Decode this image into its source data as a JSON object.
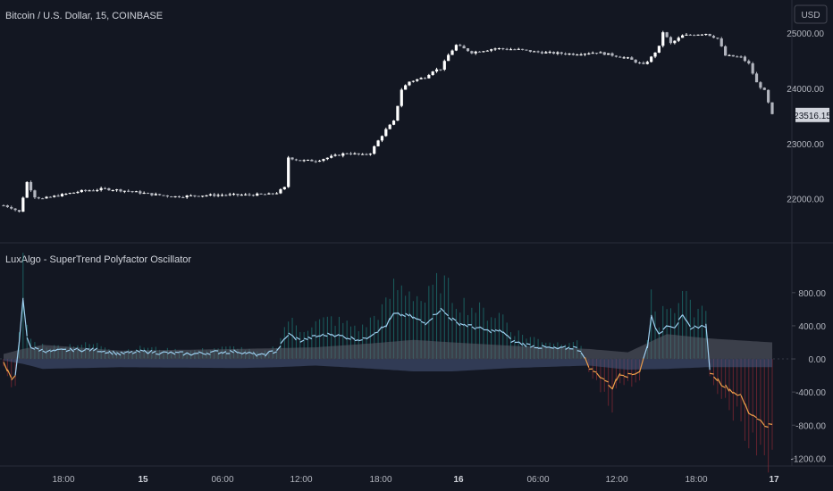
{
  "chart_data": [
    {
      "type": "candlestick",
      "title": "Bitcoin / U.S. Dollar, 15, COINBASE",
      "currency": "USD",
      "last_price": "23516.15",
      "yticks": [
        "25000.00",
        "24000.00",
        "23000.00",
        "22000.00"
      ],
      "ylim": [
        21300,
        25500
      ],
      "close_path": [
        [
          0,
          21880
        ],
        [
          2,
          21840
        ],
        [
          4,
          21760
        ],
        [
          6,
          22300
        ],
        [
          8,
          22040
        ],
        [
          10,
          22000
        ],
        [
          14,
          22060
        ],
        [
          20,
          22140
        ],
        [
          26,
          22180
        ],
        [
          32,
          22140
        ],
        [
          38,
          22080
        ],
        [
          44,
          22040
        ],
        [
          50,
          22060
        ],
        [
          56,
          22070
        ],
        [
          62,
          22070
        ],
        [
          68,
          22080
        ],
        [
          70,
          22110
        ],
        [
          72,
          22200
        ],
        [
          73,
          22750
        ],
        [
          76,
          22690
        ],
        [
          80,
          22690
        ],
        [
          84,
          22760
        ],
        [
          88,
          22830
        ],
        [
          92,
          22790
        ],
        [
          94,
          22830
        ],
        [
          96,
          23050
        ],
        [
          98,
          23250
        ],
        [
          100,
          23400
        ],
        [
          102,
          23980
        ],
        [
          104,
          24120
        ],
        [
          108,
          24200
        ],
        [
          110,
          24320
        ],
        [
          112,
          24350
        ],
        [
          114,
          24600
        ],
        [
          116,
          24780
        ],
        [
          120,
          24650
        ],
        [
          126,
          24720
        ],
        [
          132,
          24700
        ],
        [
          136,
          24660
        ],
        [
          140,
          24640
        ],
        [
          146,
          24620
        ],
        [
          152,
          24650
        ],
        [
          156,
          24600
        ],
        [
          160,
          24540
        ],
        [
          164,
          24420
        ],
        [
          166,
          24560
        ],
        [
          168,
          24750
        ],
        [
          169,
          25020
        ],
        [
          171,
          24810
        ],
        [
          174,
          24950
        ],
        [
          178,
          24980
        ],
        [
          180,
          24990
        ],
        [
          183,
          24900
        ],
        [
          185,
          24590
        ],
        [
          189,
          24560
        ],
        [
          191,
          24440
        ],
        [
          193,
          24100
        ],
        [
          195,
          23950
        ],
        [
          197,
          23516
        ]
      ]
    },
    {
      "type": "line",
      "title": "LuxAlgo - SuperTrend Polyfactor Oscillator",
      "yticks": [
        "800.00",
        "400.00",
        "0.00",
        "-400.00",
        "-800.00",
        "-1200.00"
      ],
      "ylim": [
        -1250,
        1100
      ],
      "xticks": [
        "18:00",
        "15",
        "06:00",
        "12:00",
        "18:00",
        "16",
        "06:00",
        "12:00",
        "18:00",
        "17"
      ],
      "xticks_bold": [
        false,
        true,
        false,
        false,
        false,
        true,
        false,
        false,
        false,
        true
      ],
      "oscillator": [
        [
          0,
          -50
        ],
        [
          2,
          -250
        ],
        [
          3,
          -180
        ],
        [
          4,
          180
        ],
        [
          5,
          720
        ],
        [
          6,
          260
        ],
        [
          7,
          150
        ],
        [
          8,
          120
        ],
        [
          12,
          90
        ],
        [
          18,
          110
        ],
        [
          24,
          110
        ],
        [
          30,
          60
        ],
        [
          36,
          90
        ],
        [
          42,
          70
        ],
        [
          48,
          60
        ],
        [
          54,
          80
        ],
        [
          60,
          90
        ],
        [
          66,
          40
        ],
        [
          70,
          100
        ],
        [
          73,
          300
        ],
        [
          76,
          220
        ],
        [
          80,
          270
        ],
        [
          84,
          300
        ],
        [
          88,
          260
        ],
        [
          92,
          230
        ],
        [
          95,
          320
        ],
        [
          98,
          400
        ],
        [
          100,
          540
        ],
        [
          104,
          520
        ],
        [
          108,
          430
        ],
        [
          112,
          600
        ],
        [
          116,
          440
        ],
        [
          120,
          390
        ],
        [
          124,
          340
        ],
        [
          128,
          330
        ],
        [
          130,
          220
        ],
        [
          134,
          170
        ],
        [
          138,
          140
        ],
        [
          142,
          120
        ],
        [
          146,
          140
        ],
        [
          148,
          100
        ],
        [
          150,
          -100
        ],
        [
          154,
          -250
        ],
        [
          156,
          -350
        ],
        [
          158,
          -170
        ],
        [
          160,
          -200
        ],
        [
          163,
          -150
        ],
        [
          165,
          150
        ],
        [
          166,
          520
        ],
        [
          168,
          280
        ],
        [
          170,
          420
        ],
        [
          172,
          390
        ],
        [
          174,
          510
        ],
        [
          176,
          380
        ],
        [
          178,
          390
        ],
        [
          180,
          400
        ],
        [
          181,
          -150
        ],
        [
          184,
          -300
        ],
        [
          187,
          -400
        ],
        [
          189,
          -450
        ],
        [
          191,
          -650
        ],
        [
          193,
          -700
        ],
        [
          195,
          -800
        ]
      ],
      "band_upper": [
        [
          0,
          60
        ],
        [
          5,
          120
        ],
        [
          10,
          170
        ],
        [
          30,
          100
        ],
        [
          60,
          120
        ],
        [
          70,
          130
        ],
        [
          80,
          140
        ],
        [
          95,
          190
        ],
        [
          105,
          230
        ],
        [
          115,
          200
        ],
        [
          130,
          160
        ],
        [
          150,
          120
        ],
        [
          160,
          80
        ],
        [
          170,
          300
        ],
        [
          180,
          250
        ],
        [
          190,
          220
        ],
        [
          197,
          200
        ]
      ],
      "band_lower": [
        [
          0,
          -20
        ],
        [
          5,
          -60
        ],
        [
          10,
          -120
        ],
        [
          30,
          -100
        ],
        [
          60,
          -110
        ],
        [
          70,
          -100
        ],
        [
          80,
          -80
        ],
        [
          95,
          -120
        ],
        [
          105,
          -150
        ],
        [
          115,
          -150
        ],
        [
          130,
          -110
        ],
        [
          150,
          -80
        ],
        [
          160,
          -130
        ],
        [
          170,
          -120
        ],
        [
          180,
          -100
        ],
        [
          190,
          -100
        ],
        [
          197,
          -100
        ]
      ]
    }
  ]
}
